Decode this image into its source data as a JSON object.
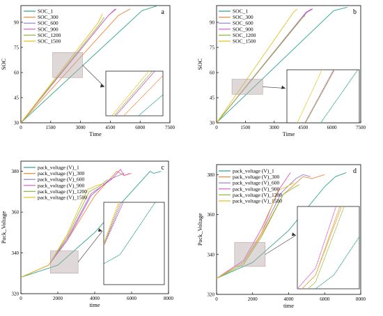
{
  "figure": {
    "panels": [
      "a",
      "b",
      "c",
      "d"
    ]
  },
  "chart_data": [
    {
      "panel": "a",
      "type": "line",
      "xlabel": "Time",
      "ylabel": "SOC",
      "xlim": [
        0,
        7500
      ],
      "ylim": [
        30,
        100
      ],
      "xticks": [
        0,
        1500,
        3000,
        4500,
        6000,
        7500
      ],
      "yticks": [
        30,
        45,
        60,
        75,
        90
      ],
      "legend_position": "top-left",
      "inset": true,
      "series": [
        {
          "name": "SOC_1",
          "color": "#2ca58d",
          "x": [
            0,
            6100,
            6900
          ],
          "y": [
            30,
            97,
            100
          ]
        },
        {
          "name": "SOC_300",
          "color": "#f28a3c",
          "x": [
            0,
            4900,
            5500
          ],
          "y": [
            30,
            94,
            98
          ]
        },
        {
          "name": "SOC_600",
          "color": "#8f7cc8",
          "x": [
            0,
            4400,
            4800
          ],
          "y": [
            30,
            94,
            98
          ]
        },
        {
          "name": "SOC_900",
          "color": "#e050c8",
          "x": [
            0,
            4400,
            4750
          ],
          "y": [
            30,
            94,
            98
          ]
        },
        {
          "name": "SOC_1200",
          "color": "#8cbf3a",
          "x": [
            0,
            3900,
            4200
          ],
          "y": [
            30,
            88,
            93
          ]
        },
        {
          "name": "SOC_1500",
          "color": "#e8c026",
          "x": [
            0,
            3900,
            4100
          ],
          "y": [
            30,
            90,
            95
          ]
        }
      ]
    },
    {
      "panel": "b",
      "type": "line",
      "xlabel": "Time",
      "ylabel": "SOC",
      "xlim": [
        0,
        7500
      ],
      "ylim": [
        30,
        100
      ],
      "xticks": [
        0,
        1500,
        3000,
        4500,
        6000,
        7500
      ],
      "yticks": [
        30,
        45,
        60,
        75,
        90
      ],
      "legend_position": "top-left",
      "inset": true,
      "series": [
        {
          "name": "SOC_1",
          "color": "#2ca58d",
          "x": [
            0,
            6100,
            6800
          ],
          "y": [
            30,
            97,
            99
          ]
        },
        {
          "name": "SOC_300",
          "color": "#f28a3c",
          "x": [
            0,
            4700,
            5000
          ],
          "y": [
            30,
            96,
            98
          ]
        },
        {
          "name": "SOC_600",
          "color": "#8f7cc8",
          "x": [
            0,
            4700,
            5000
          ],
          "y": [
            30,
            96,
            98
          ]
        },
        {
          "name": "SOC_900",
          "color": "#e050c8",
          "x": [
            0,
            4650,
            4950
          ],
          "y": [
            30,
            96,
            98
          ]
        },
        {
          "name": "SOC_1200",
          "color": "#8cbf3a",
          "x": [
            0,
            4400,
            4600
          ],
          "y": [
            30,
            92,
            94
          ]
        },
        {
          "name": "SOC_1500",
          "color": "#e8c026",
          "x": [
            0,
            4000,
            4200
          ],
          "y": [
            30,
            96,
            98
          ]
        }
      ]
    },
    {
      "panel": "c",
      "type": "line",
      "xlabel": "time",
      "ylabel": "Pack_Voltage",
      "xlim": [
        0,
        8000
      ],
      "ylim": [
        320,
        385
      ],
      "xticks": [
        0,
        2000,
        4000,
        6000,
        8000
      ],
      "yticks": [
        320,
        340,
        360,
        380
      ],
      "legend_position": "top-left",
      "inset": true,
      "series": [
        {
          "name": "pack_voltage (V)_1",
          "color": "#2ca58d",
          "x": [
            0,
            2000,
            4000,
            6000,
            7000,
            7200,
            7600
          ],
          "y": [
            328,
            334,
            350,
            370,
            380,
            379,
            380
          ]
        },
        {
          "name": "pack_voltage (V)_300",
          "color": "#f28a3c",
          "x": [
            0,
            1500,
            2500,
            4000,
            5200,
            5600,
            6000
          ],
          "y": [
            328,
            334,
            346,
            368,
            380,
            378,
            379
          ]
        },
        {
          "name": "pack_voltage (V)_600",
          "color": "#8f7cc8",
          "x": [
            0,
            1500,
            2500,
            3800,
            4800,
            5300,
            5600
          ],
          "y": [
            328,
            334,
            346,
            368,
            376,
            378,
            379
          ]
        },
        {
          "name": "pack_voltage (V)_900",
          "color": "#e050c8",
          "x": [
            0,
            1500,
            2500,
            3800,
            4900,
            5400,
            5600,
            5900
          ],
          "y": [
            328,
            334,
            347,
            369,
            376,
            381,
            378,
            379
          ]
        },
        {
          "name": "pack_voltage (V)_1200",
          "color": "#8cbf3a",
          "x": [
            0,
            1500,
            2500,
            3700,
            4300,
            4700
          ],
          "y": [
            328,
            334,
            348,
            370,
            373,
            376
          ]
        },
        {
          "name": "pack_voltage (V)_1500",
          "color": "#e8c026",
          "x": [
            0,
            1500,
            2500,
            3600,
            4100,
            4500
          ],
          "y": [
            328,
            334,
            349,
            371,
            373,
            374
          ]
        }
      ]
    },
    {
      "panel": "d",
      "type": "line",
      "xlabel": "time",
      "ylabel": "Pack_Voltage",
      "xlim": [
        0,
        8000
      ],
      "ylim": [
        320,
        385
      ],
      "xticks": [
        0,
        2000,
        4000,
        6000,
        8000
      ],
      "yticks": [
        320,
        340,
        360,
        380
      ],
      "legend_position": "top-left",
      "inset": true,
      "series": [
        {
          "name": "pack_voltage (V)_1",
          "color": "#2ca58d",
          "x": [
            0,
            2000,
            4000,
            6000,
            6600,
            7200
          ],
          "y": [
            328,
            336,
            352,
            374,
            379,
            381
          ]
        },
        {
          "name": "pack_voltage (V)_300",
          "color": "#f28a3c",
          "x": [
            0,
            1500,
            2500,
            3700,
            4800,
            5300,
            6000
          ],
          "y": [
            328,
            336,
            350,
            370,
            379,
            378,
            380
          ]
        },
        {
          "name": "pack_voltage (V)_600",
          "color": "#8f7cc8",
          "x": [
            0,
            1500,
            2500,
            3600,
            4400,
            4800,
            5200
          ],
          "y": [
            328,
            336,
            351,
            371,
            378,
            380,
            379
          ]
        },
        {
          "name": "pack_voltage (V)_900",
          "color": "#e050c8",
          "x": [
            0,
            1500,
            2500,
            3500,
            4100
          ],
          "y": [
            328,
            337,
            353,
            373,
            381
          ]
        },
        {
          "name": "pack_voltage (V)_1200",
          "color": "#8cbf3a",
          "x": [
            0,
            1500,
            2500,
            3700,
            4200,
            4600
          ],
          "y": [
            328,
            335,
            349,
            370,
            373,
            375
          ]
        },
        {
          "name": "pack_voltage (V)_1500",
          "color": "#e8c026",
          "x": [
            0,
            1500,
            2500,
            3400,
            3900,
            4300
          ],
          "y": [
            328,
            336,
            351,
            372,
            374,
            376
          ]
        }
      ]
    }
  ]
}
